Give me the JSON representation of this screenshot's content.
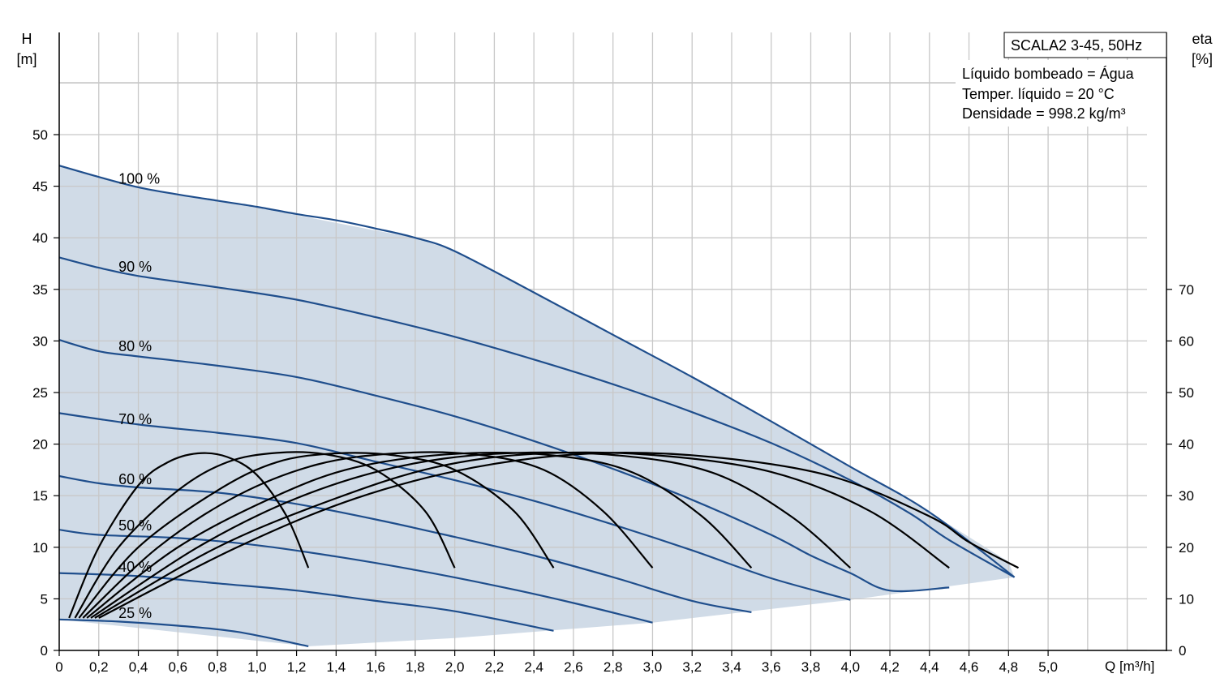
{
  "chart_data": {
    "type": "line",
    "title": "SCALA2 3-45, 50Hz",
    "info_lines": [
      "Líquido bombeado = Água",
      "Temper. líquido = 20 °C",
      "Densidade = 998.2 kg/m³"
    ],
    "y_left_label": [
      "H",
      "[m]"
    ],
    "y_right_label": [
      "eta",
      "[%]"
    ],
    "x_label": "Q [m³/h]",
    "xlim": [
      0,
      5.5
    ],
    "ylim": [
      0,
      60
    ],
    "y_right_lim": [
      0,
      120
    ],
    "x_ticks": [
      "0",
      "0,2",
      "0,4",
      "0,6",
      "0,8",
      "1,0",
      "1,2",
      "1,4",
      "1,6",
      "1,8",
      "2,0",
      "2,2",
      "2,4",
      "2,6",
      "2,8",
      "3,0",
      "3,2",
      "3,4",
      "3,6",
      "3,8",
      "4,0",
      "4,2",
      "4,4",
      "4,6",
      "4,8",
      "5,0"
    ],
    "y_left_ticks": [
      "0",
      "5",
      "10",
      "15",
      "20",
      "25",
      "30",
      "35",
      "40",
      "45",
      "50"
    ],
    "y_right_ticks": [
      "0",
      "10",
      "20",
      "30",
      "40",
      "50",
      "60",
      "70"
    ],
    "grid": true,
    "area_colors": {
      "fill": "#d0dbe7",
      "head_curve": "#1f4e8c",
      "efficiency_curve": "#000000"
    },
    "operating_area": [
      [
        0,
        47
      ],
      [
        0.4,
        44.9
      ],
      [
        0.8,
        43.6
      ],
      [
        1.2,
        42.2
      ],
      [
        1.6,
        40.7
      ],
      [
        1.8,
        40
      ],
      [
        2.0,
        38.7
      ],
      [
        2.4,
        34.7
      ],
      [
        2.8,
        30.6
      ],
      [
        3.2,
        26.5
      ],
      [
        3.6,
        22.2
      ],
      [
        4.0,
        17.8
      ],
      [
        4.4,
        13.4
      ],
      [
        4.8,
        8.6
      ],
      [
        4.83,
        7.1
      ],
      [
        4.0,
        4.9
      ],
      [
        3.0,
        2.7
      ],
      [
        2.0,
        1.2
      ],
      [
        1.26,
        0.4
      ],
      [
        0,
        3.0
      ]
    ],
    "series": [
      {
        "name": "100 %",
        "label_x": 0.3,
        "label_y": 45.7,
        "points": [
          [
            0,
            47
          ],
          [
            0.2,
            45.9
          ],
          [
            0.4,
            44.9
          ],
          [
            0.6,
            44.2
          ],
          [
            0.8,
            43.6
          ],
          [
            1.0,
            43.0
          ],
          [
            1.2,
            42.3
          ],
          [
            1.4,
            41.7
          ],
          [
            1.6,
            40.9
          ],
          [
            1.8,
            40.0
          ],
          [
            2.0,
            38.7
          ],
          [
            2.4,
            34.7
          ],
          [
            2.8,
            30.6
          ],
          [
            3.2,
            26.5
          ],
          [
            3.6,
            22.2
          ],
          [
            4.0,
            17.8
          ],
          [
            4.4,
            13.4
          ],
          [
            4.83,
            7.1
          ]
        ]
      },
      {
        "name": "90 %",
        "label_x": 0.3,
        "label_y": 37.2,
        "points": [
          [
            0,
            38.1
          ],
          [
            0.2,
            37.1
          ],
          [
            0.4,
            36.3
          ],
          [
            0.8,
            35.2
          ],
          [
            1.2,
            34.0
          ],
          [
            1.6,
            32.3
          ],
          [
            2.0,
            30.4
          ],
          [
            2.4,
            28.2
          ],
          [
            2.8,
            25.8
          ],
          [
            3.2,
            23.1
          ],
          [
            3.6,
            20.1
          ],
          [
            4.0,
            16.5
          ],
          [
            4.3,
            13.3
          ],
          [
            4.5,
            10.7
          ],
          [
            4.83,
            7.1
          ]
        ]
      },
      {
        "name": "80 %",
        "label_x": 0.3,
        "label_y": 29.5,
        "points": [
          [
            0,
            30.1
          ],
          [
            0.2,
            29.0
          ],
          [
            0.4,
            28.5
          ],
          [
            0.8,
            27.6
          ],
          [
            1.2,
            26.5
          ],
          [
            1.6,
            24.7
          ],
          [
            2.0,
            22.7
          ],
          [
            2.4,
            20.3
          ],
          [
            2.8,
            17.6
          ],
          [
            3.2,
            14.6
          ],
          [
            3.6,
            11.2
          ],
          [
            3.8,
            9.2
          ],
          [
            4.0,
            7.5
          ],
          [
            4.2,
            5.8
          ],
          [
            4.5,
            6.1
          ]
        ]
      },
      {
        "name": "70 %",
        "label_x": 0.3,
        "label_y": 22.4,
        "points": [
          [
            0,
            23.0
          ],
          [
            0.4,
            21.9
          ],
          [
            0.8,
            21.1
          ],
          [
            1.2,
            20.1
          ],
          [
            1.6,
            18.3
          ],
          [
            2.0,
            16.5
          ],
          [
            2.4,
            14.5
          ],
          [
            2.8,
            12.2
          ],
          [
            3.2,
            9.7
          ],
          [
            3.6,
            7.0
          ],
          [
            4.0,
            4.9
          ]
        ]
      },
      {
        "name": "60 %",
        "label_x": 0.3,
        "label_y": 16.6,
        "points": [
          [
            0,
            16.9
          ],
          [
            0.2,
            16.2
          ],
          [
            0.4,
            15.8
          ],
          [
            0.8,
            15.3
          ],
          [
            1.2,
            14.2
          ],
          [
            1.6,
            12.7
          ],
          [
            2.0,
            11.0
          ],
          [
            2.4,
            9.2
          ],
          [
            2.8,
            7.1
          ],
          [
            3.2,
            4.8
          ],
          [
            3.5,
            3.7
          ]
        ]
      },
      {
        "name": "50 %",
        "label_x": 0.3,
        "label_y": 12.1,
        "points": [
          [
            0,
            11.7
          ],
          [
            0.2,
            11.2
          ],
          [
            0.6,
            10.9
          ],
          [
            1.0,
            10.2
          ],
          [
            1.4,
            9.1
          ],
          [
            1.8,
            7.8
          ],
          [
            2.2,
            6.3
          ],
          [
            2.6,
            4.6
          ],
          [
            3.0,
            2.7
          ]
        ]
      },
      {
        "name": "40 %",
        "label_x": 0.3,
        "label_y": 8.1,
        "points": [
          [
            0,
            7.5
          ],
          [
            0.4,
            7.2
          ],
          [
            0.8,
            6.5
          ],
          [
            1.2,
            5.8
          ],
          [
            1.6,
            4.8
          ],
          [
            2.0,
            3.8
          ],
          [
            2.5,
            1.9
          ]
        ]
      },
      {
        "name": "25 %",
        "label_x": 0.3,
        "label_y": 3.6,
        "points": [
          [
            0,
            3.0
          ],
          [
            0.3,
            2.8
          ],
          [
            0.6,
            2.4
          ],
          [
            0.9,
            1.8
          ],
          [
            1.26,
            0.4
          ]
        ]
      }
    ],
    "efficiency_curves": [
      {
        "points": [
          [
            0.05,
            6.3
          ],
          [
            0.2,
            20
          ],
          [
            0.4,
            32
          ],
          [
            0.55,
            36.5
          ],
          [
            0.7,
            38.2
          ],
          [
            0.85,
            37.5
          ],
          [
            1.0,
            34
          ],
          [
            1.15,
            26
          ],
          [
            1.26,
            16
          ]
        ]
      },
      {
        "points": [
          [
            0.08,
            6.3
          ],
          [
            0.3,
            20
          ],
          [
            0.6,
            31
          ],
          [
            0.85,
            36.5
          ],
          [
            1.1,
            38.3
          ],
          [
            1.35,
            38
          ],
          [
            1.6,
            35
          ],
          [
            1.85,
            27
          ],
          [
            2.0,
            16
          ]
        ]
      },
      {
        "points": [
          [
            0.1,
            6.3
          ],
          [
            0.4,
            20
          ],
          [
            0.8,
            31
          ],
          [
            1.1,
            36.5
          ],
          [
            1.4,
            38.2
          ],
          [
            1.7,
            37.8
          ],
          [
            2.0,
            35
          ],
          [
            2.3,
            27
          ],
          [
            2.5,
            16
          ]
        ]
      },
      {
        "points": [
          [
            0.12,
            6.3
          ],
          [
            0.5,
            20
          ],
          [
            0.9,
            30
          ],
          [
            1.3,
            36
          ],
          [
            1.7,
            38.2
          ],
          [
            2.1,
            38
          ],
          [
            2.45,
            35
          ],
          [
            2.75,
            27
          ],
          [
            3.0,
            16
          ]
        ]
      },
      {
        "points": [
          [
            0.14,
            6.3
          ],
          [
            0.6,
            20
          ],
          [
            1.1,
            30
          ],
          [
            1.5,
            35.5
          ],
          [
            2.0,
            38.1
          ],
          [
            2.5,
            37.8
          ],
          [
            2.9,
            34.5
          ],
          [
            3.25,
            26
          ],
          [
            3.5,
            16
          ]
        ]
      },
      {
        "points": [
          [
            0.16,
            6.3
          ],
          [
            0.7,
            20
          ],
          [
            1.2,
            29.5
          ],
          [
            1.7,
            35.5
          ],
          [
            2.2,
            38.1
          ],
          [
            2.8,
            37.9
          ],
          [
            3.3,
            34.5
          ],
          [
            3.7,
            26
          ],
          [
            4.0,
            16
          ]
        ]
      },
      {
        "points": [
          [
            0.18,
            6.3
          ],
          [
            0.8,
            20
          ],
          [
            1.4,
            29.5
          ],
          [
            1.9,
            35.5
          ],
          [
            2.4,
            38.1
          ],
          [
            3.0,
            37.9
          ],
          [
            3.6,
            34.6
          ],
          [
            4.1,
            27
          ],
          [
            4.5,
            16
          ]
        ]
      },
      {
        "points": [
          [
            0.2,
            6.3
          ],
          [
            0.9,
            20
          ],
          [
            1.5,
            29.5
          ],
          [
            2.1,
            35.5
          ],
          [
            2.7,
            38.2
          ],
          [
            3.3,
            37.5
          ],
          [
            3.9,
            33.8
          ],
          [
            4.4,
            26
          ],
          [
            4.6,
            21
          ],
          [
            4.85,
            16
          ]
        ]
      }
    ]
  }
}
